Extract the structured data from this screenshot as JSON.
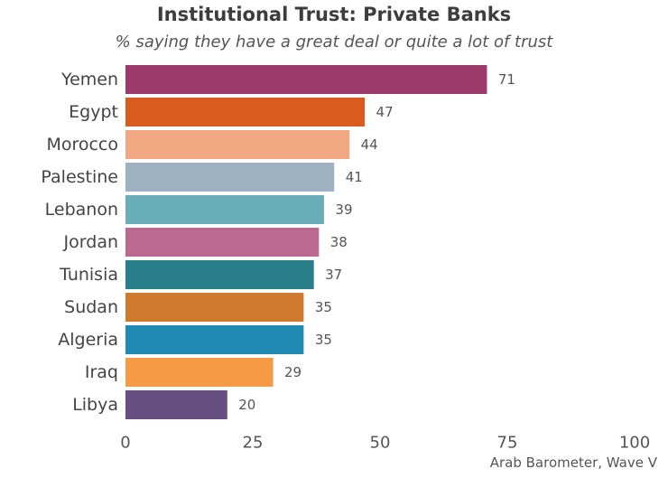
{
  "chart_data": {
    "type": "bar",
    "orientation": "horizontal",
    "title": "Institutional Trust: Private Banks",
    "subtitle": "% saying they have a great deal or quite a lot of trust",
    "caption": "Arab Barometer, Wave V",
    "categories": [
      "Yemen",
      "Egypt",
      "Morocco",
      "Palestine",
      "Lebanon",
      "Jordan",
      "Tunisia",
      "Sudan",
      "Algeria",
      "Iraq",
      "Libya"
    ],
    "values": [
      71,
      47,
      44,
      41,
      39,
      38,
      37,
      35,
      35,
      29,
      20
    ],
    "value_labels": [
      "71",
      "47",
      "44",
      "41",
      "39",
      "38",
      "37",
      "35",
      "35",
      "29",
      "20"
    ],
    "colors": [
      "#9b3a6b",
      "#d95b1d",
      "#f2a882",
      "#9fb2c3",
      "#6aaeba",
      "#bd6a93",
      "#287f8a",
      "#cf7a2c",
      "#2089b3",
      "#f79a45",
      "#684f82"
    ],
    "xticks": [
      0,
      25,
      50,
      75,
      100
    ],
    "xtick_labels": [
      "0",
      "25",
      "50",
      "75",
      "100"
    ],
    "xlim": [
      0,
      100
    ],
    "grid": false,
    "legend": "none"
  }
}
